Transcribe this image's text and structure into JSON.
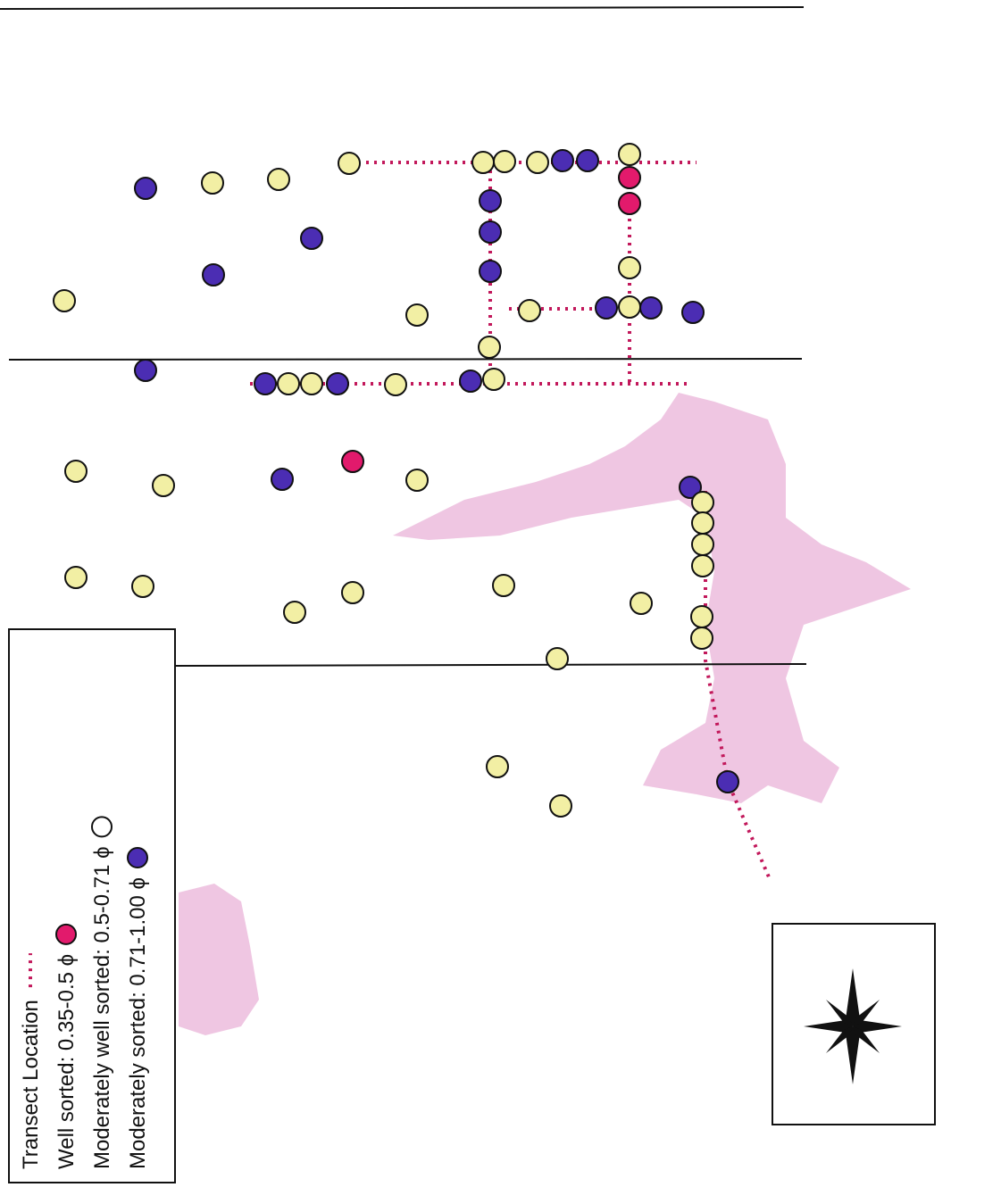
{
  "legend": {
    "items": [
      "Transect Location",
      "Well sorted:  0.35-0.5 ϕ",
      "Moderately well sorted: 0.5-0.71 ϕ",
      "Moderately sorted: 0.71-1.00 ϕ"
    ]
  }
}
